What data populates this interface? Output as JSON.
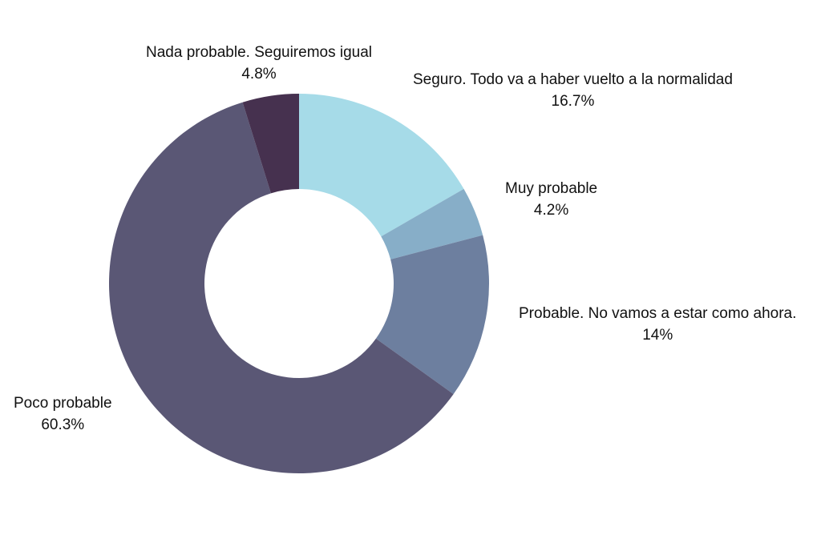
{
  "chart_data": {
    "type": "pie",
    "variant": "donut",
    "slices": [
      {
        "label": "Seguro. Todo va a haber vuelto a la normalidad",
        "value": 16.7,
        "value_label": "16.7%",
        "color": "#a6dbe8"
      },
      {
        "label": "Muy probable",
        "value": 4.2,
        "value_label": "4.2%",
        "color": "#87aec8"
      },
      {
        "label": "Probable. No vamos a estar como ahora.",
        "value": 14,
        "value_label": "14%",
        "color": "#6d7f9f"
      },
      {
        "label": "Poco probable",
        "value": 60.3,
        "value_label": "60.3%",
        "color": "#5a5775"
      },
      {
        "label": "Nada probable. Seguiremos igual",
        "value": 4.8,
        "value_label": "4.8%",
        "color": "#46314f"
      }
    ],
    "legend": "none",
    "start_angle": "top",
    "direction": "clockwise"
  }
}
